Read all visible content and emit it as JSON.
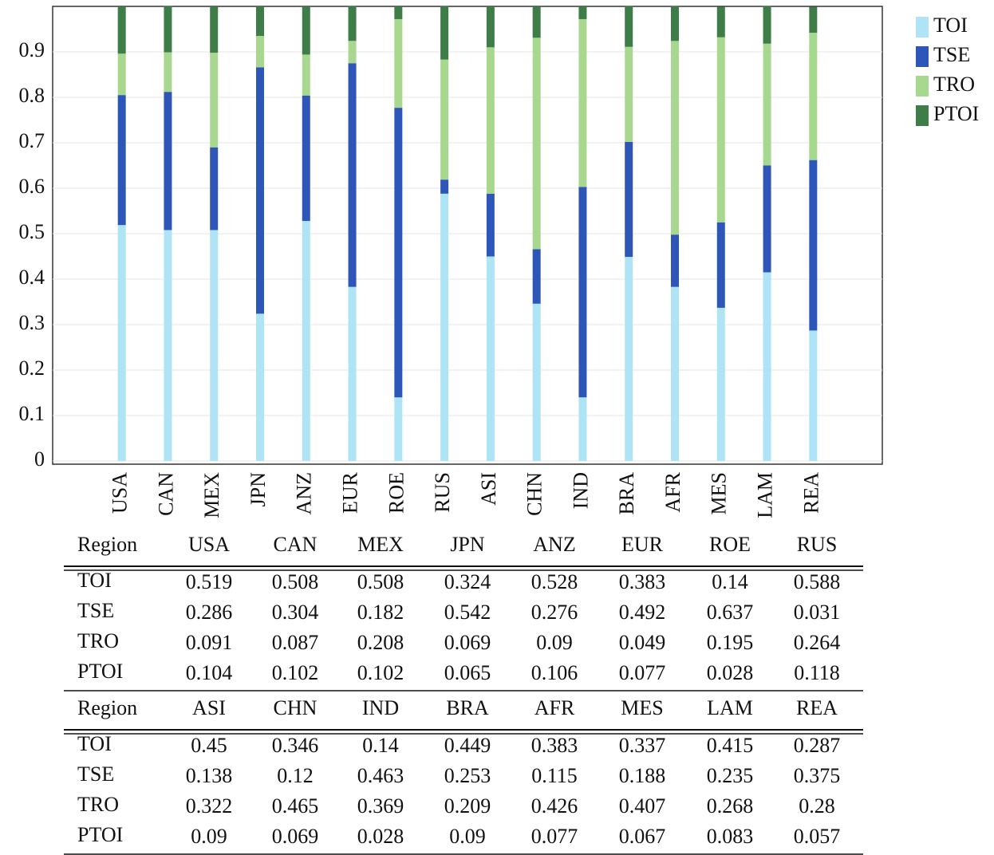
{
  "chart_data": {
    "type": "stacked_bar",
    "categories": [
      "USA",
      "CAN",
      "MEX",
      "JPN",
      "ANZ",
      "EUR",
      "ROE",
      "RUS",
      "ASI",
      "CHN",
      "IND",
      "BRA",
      "AFR",
      "MES",
      "LAM",
      "REA"
    ],
    "series": [
      {
        "name": "TOI",
        "color": "#aee4f5",
        "values": [
          0.519,
          0.508,
          0.508,
          0.324,
          0.528,
          0.383,
          0.14,
          0.588,
          0.45,
          0.346,
          0.14,
          0.449,
          0.383,
          0.337,
          0.415,
          0.287
        ]
      },
      {
        "name": "TSE",
        "color": "#2e56b8",
        "values": [
          0.286,
          0.304,
          0.182,
          0.542,
          0.276,
          0.492,
          0.637,
          0.031,
          0.138,
          0.12,
          0.463,
          0.253,
          0.115,
          0.188,
          0.235,
          0.375
        ]
      },
      {
        "name": "TRO",
        "color": "#a8d890",
        "values": [
          0.091,
          0.087,
          0.208,
          0.069,
          0.09,
          0.049,
          0.195,
          0.264,
          0.322,
          0.465,
          0.369,
          0.209,
          0.426,
          0.407,
          0.268,
          0.28
        ]
      },
      {
        "name": "PTOI",
        "color": "#3e7d48",
        "values": [
          0.104,
          0.102,
          0.102,
          0.065,
          0.106,
          0.077,
          0.028,
          0.118,
          0.09,
          0.069,
          0.028,
          0.09,
          0.077,
          0.067,
          0.083,
          0.057
        ]
      }
    ],
    "ylim": [
      0,
      1
    ],
    "yticks": [
      0,
      0.1,
      0.2,
      0.3,
      0.4,
      0.5,
      0.6,
      0.7,
      0.8,
      0.9
    ],
    "grid": true,
    "legend": "right"
  },
  "table": {
    "header_label": "Region"
  }
}
